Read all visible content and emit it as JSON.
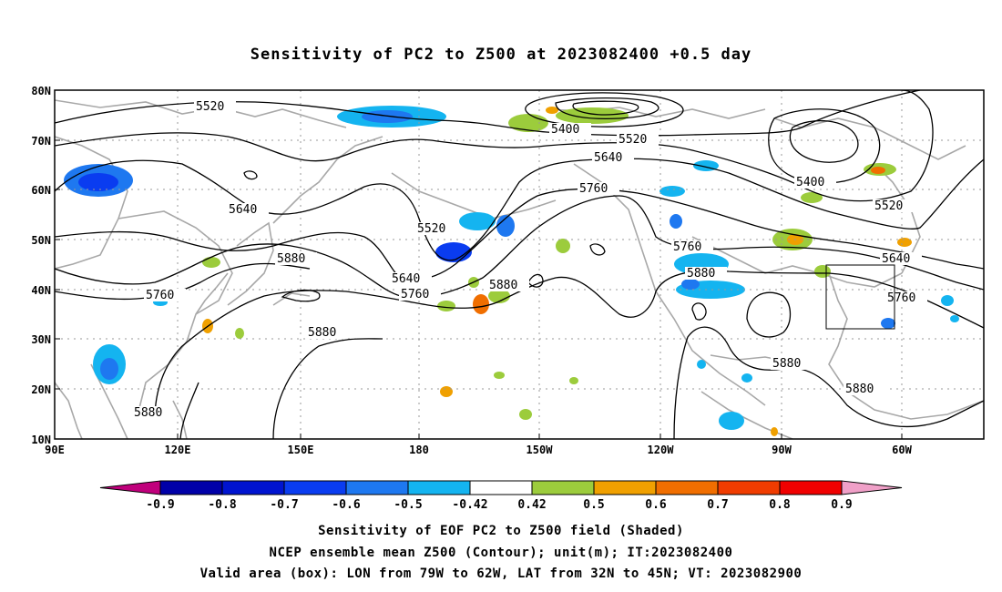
{
  "title": "Sensitivity of PC2 to Z500 at 2023082400 +0.5 day",
  "map": {
    "lat_labels": [
      "80N",
      "70N",
      "60N",
      "50N",
      "40N",
      "30N",
      "20N",
      "10N"
    ],
    "lon_labels": [
      "90E",
      "120E",
      "150E",
      "180",
      "150W",
      "120W",
      "90W",
      "60W"
    ],
    "contour_labels": [
      "5520",
      "5400",
      "5520",
      "5640",
      "5760",
      "5640",
      "5520",
      "5400",
      "5520",
      "5760",
      "5880",
      "5760",
      "5640",
      "5760",
      "5880",
      "5880",
      "5640",
      "5760",
      "5880",
      "5880",
      "5880",
      "5880"
    ]
  },
  "colorbar": {
    "labels": [
      "-0.9",
      "-0.8",
      "-0.7",
      "-0.6",
      "-0.5",
      "-0.42",
      "0.42",
      "0.5",
      "0.6",
      "0.7",
      "0.8",
      "0.9"
    ],
    "colors": [
      "#c0007c",
      "#0000a8",
      "#0014d0",
      "#0a3cf0",
      "#1e78f0",
      "#14b4f0",
      "#ffffff",
      "#9ccc3c",
      "#f0a000",
      "#f06e00",
      "#f03c00",
      "#f00000",
      "#f0a0c8"
    ]
  },
  "captions": {
    "line1": "Sensitivity of EOF PC2 to Z500 field (Shaded)",
    "line2": "NCEP ensemble mean Z500 (Contour); unit(m); IT:2023082400",
    "line3": "Valid area (box): LON from 79W to 62W, LAT from 32N to 45N; VT: 2023082900"
  }
}
